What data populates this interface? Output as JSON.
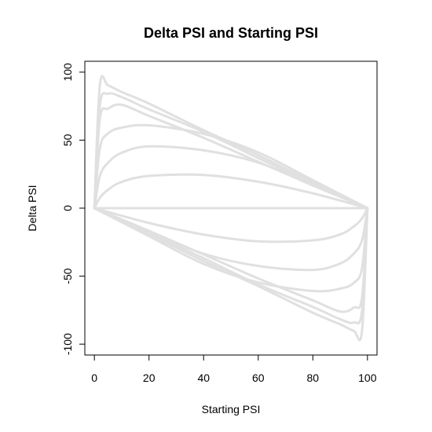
{
  "chart_data": {
    "type": "line",
    "title": "Delta PSI and Starting PSI",
    "xlabel": "Starting PSI",
    "ylabel": "Delta PSI",
    "xlim": [
      -3.5,
      103.5
    ],
    "ylim": [
      -108,
      108
    ],
    "xticks": [
      0,
      20,
      40,
      60,
      80,
      100
    ],
    "yticks": [
      -100,
      -50,
      0,
      50,
      100
    ],
    "grid": false,
    "legend": "none",
    "line_color": "#e0e0e0",
    "series_note_exponents": [
      0.02,
      0.05,
      0.1,
      0.2,
      0.35,
      0.6,
      1,
      1.67,
      2.86,
      5,
      10,
      20,
      50
    ],
    "series": [
      {
        "x": [
          0,
          2,
          5,
          10,
          20,
          40,
          60,
          80,
          100
        ],
        "y": [
          0,
          90.2,
          90.3,
          85.4,
          76.9,
          57.3,
          38.9,
          19.2,
          0
        ]
      },
      {
        "x": [
          0,
          2,
          5,
          10,
          20,
          40,
          60,
          80,
          100
        ],
        "y": [
          0,
          75.4,
          84.1,
          81.7,
          72.6,
          56.1,
          36.8,
          18.1,
          0
        ]
      },
      {
        "x": [
          0,
          2,
          5,
          10,
          20,
          40,
          60,
          80,
          100
        ],
        "y": [
          0,
          65.8,
          73.1,
          76.0,
          67.8,
          51.7,
          34.1,
          16.7,
          0
        ]
      },
      {
        "x": [
          0,
          2,
          5,
          10,
          20,
          40,
          60,
          80,
          100
        ],
        "y": [
          0,
          44.1,
          54.9,
          59.2,
          60.9,
          54.6,
          41.0,
          20.6,
          0
        ]
      },
      {
        "x": [
          0,
          2,
          5,
          10,
          20,
          40,
          60,
          80,
          100
        ],
        "y": [
          0,
          23.6,
          33.4,
          40.7,
          45.4,
          42.5,
          33.5,
          17.5,
          0
        ]
      },
      {
        "x": [
          0,
          2,
          5,
          10,
          20,
          40,
          60,
          80,
          100
        ],
        "y": [
          0,
          7.6,
          13.5,
          19.3,
          23.7,
          24.4,
          19.4,
          10.9,
          0
        ]
      },
      {
        "x": [
          0,
          100
        ],
        "y": [
          0,
          0
        ]
      },
      {
        "x": [
          0,
          20,
          40,
          60,
          80,
          90,
          95,
          98,
          100
        ],
        "y": [
          0,
          -10.9,
          -19.4,
          -24.4,
          -23.7,
          -19.3,
          -13.5,
          -7.6,
          0
        ]
      },
      {
        "x": [
          0,
          20,
          40,
          60,
          80,
          90,
          95,
          98,
          100
        ],
        "y": [
          0,
          -17.5,
          -33.5,
          -42.5,
          -45.4,
          -40.7,
          -33.4,
          -23.6,
          0
        ]
      },
      {
        "x": [
          0,
          20,
          40,
          60,
          80,
          90,
          95,
          98,
          100
        ],
        "y": [
          0,
          -20.6,
          -41.0,
          -54.6,
          -60.9,
          -59.2,
          -54.9,
          -44.1,
          0
        ]
      },
      {
        "x": [
          0,
          20,
          40,
          60,
          80,
          90,
          95,
          98,
          100
        ],
        "y": [
          0,
          -16.7,
          -34.1,
          -51.7,
          -67.8,
          -76.0,
          -73.1,
          -65.8,
          0
        ]
      },
      {
        "x": [
          0,
          20,
          40,
          60,
          80,
          90,
          95,
          98,
          100
        ],
        "y": [
          0,
          -18.1,
          -36.8,
          -56.1,
          -72.6,
          -81.7,
          -84.1,
          -75.4,
          0
        ]
      },
      {
        "x": [
          0,
          20,
          40,
          60,
          80,
          90,
          95,
          98,
          100
        ],
        "y": [
          0,
          -19.2,
          -38.9,
          -57.3,
          -76.9,
          -85.4,
          -90.3,
          -90.2,
          0
        ]
      }
    ]
  }
}
